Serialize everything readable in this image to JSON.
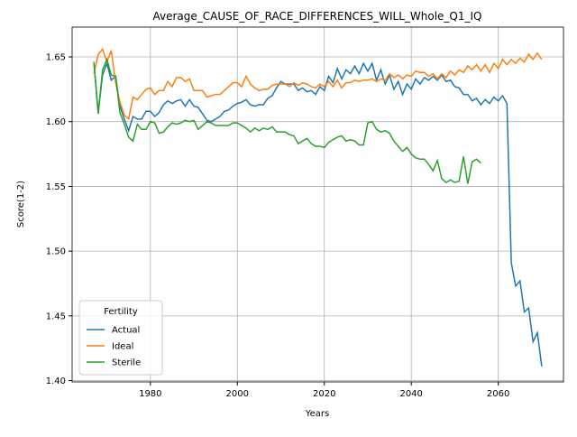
{
  "chart_data": {
    "type": "line",
    "title": "Average_CAUSE_OF_RACE_DIFFERENCES_WILL_Whole_Q1_IQ",
    "x_label": "Years",
    "y_label": "Score(1-2)",
    "legend_title": "Fertility",
    "legend": "lower left",
    "grid": true,
    "xlim": [
      1962,
      2075
    ],
    "xticks": [
      1980,
      2000,
      2020,
      2040,
      2060
    ],
    "ylim": [
      1.399,
      1.673
    ],
    "yticks": [
      {
        "value": 1.4,
        "label": "1.40"
      },
      1.45,
      {
        "value": 1.5,
        "label": "1.50"
      },
      1.55,
      {
        "value": 1.6,
        "label": "1.60"
      },
      1.65
    ],
    "x": [
      1967,
      1968,
      1969,
      1970,
      1971,
      1972,
      1973,
      1974,
      1975,
      1976,
      1977,
      1978,
      1979,
      1980,
      1981,
      1982,
      1983,
      1984,
      1985,
      1986,
      1987,
      1988,
      1989,
      1990,
      1991,
      1992,
      1993,
      1994,
      1995,
      1996,
      1997,
      1998,
      1999,
      2000,
      2001,
      2002,
      2003,
      2004,
      2005,
      2006,
      2007,
      2008,
      2009,
      2010,
      2011,
      2012,
      2013,
      2014,
      2015,
      2016,
      2017,
      2018,
      2019,
      2020,
      2021,
      2022,
      2023,
      2024,
      2025,
      2026,
      2027,
      2028,
      2029,
      2030,
      2031,
      2032,
      2033,
      2034,
      2035,
      2036,
      2037,
      2038,
      2039,
      2040,
      2041,
      2042,
      2043,
      2044,
      2045,
      2046,
      2047,
      2048,
      2049,
      2050,
      2051,
      2052,
      2053,
      2054,
      2055,
      2056,
      2057,
      2058,
      2059,
      2060,
      2061,
      2062,
      2063,
      2064,
      2065,
      2066,
      2067,
      2068,
      2069,
      2070
    ],
    "series": [
      {
        "name": "Actual",
        "color": "#1f77b4",
        "values": [
          1.646,
          1.607,
          1.636,
          1.645,
          1.632,
          1.635,
          1.612,
          1.602,
          1.593,
          1.604,
          1.602,
          1.602,
          1.608,
          1.608,
          1.604,
          1.607,
          1.613,
          1.616,
          1.614,
          1.616,
          1.617,
          1.612,
          1.617,
          1.612,
          1.611,
          1.606,
          1.601,
          1.6,
          1.602,
          1.604,
          1.608,
          1.609,
          1.612,
          1.614,
          1.615,
          1.617,
          1.613,
          1.612,
          1.613,
          1.613,
          1.618,
          1.62,
          1.626,
          1.631,
          1.629,
          1.629,
          1.629,
          1.624,
          1.626,
          1.623,
          1.624,
          1.621,
          1.627,
          1.624,
          1.635,
          1.63,
          1.641,
          1.633,
          1.64,
          1.637,
          1.643,
          1.637,
          1.645,
          1.639,
          1.645,
          1.632,
          1.64,
          1.629,
          1.636,
          1.625,
          1.631,
          1.621,
          1.629,
          1.625,
          1.633,
          1.629,
          1.634,
          1.632,
          1.635,
          1.632,
          1.636,
          1.631,
          1.632,
          1.627,
          1.626,
          1.621,
          1.621,
          1.616,
          1.618,
          1.613,
          1.617,
          1.614,
          1.619,
          1.616,
          1.62,
          1.614,
          1.491,
          1.473,
          1.477,
          1.453,
          1.456,
          1.43,
          1.437,
          1.411
        ]
      },
      {
        "name": "Ideal",
        "color": "#ff7f0e",
        "values": [
          1.637,
          1.652,
          1.656,
          1.646,
          1.655,
          1.63,
          1.615,
          1.605,
          1.602,
          1.619,
          1.617,
          1.621,
          1.625,
          1.626,
          1.621,
          1.624,
          1.624,
          1.631,
          1.627,
          1.634,
          1.634,
          1.631,
          1.633,
          1.624,
          1.624,
          1.624,
          1.619,
          1.62,
          1.621,
          1.621,
          1.624,
          1.627,
          1.63,
          1.63,
          1.627,
          1.635,
          1.629,
          1.626,
          1.624,
          1.625,
          1.625,
          1.628,
          1.629,
          1.629,
          1.629,
          1.627,
          1.63,
          1.628,
          1.63,
          1.629,
          1.627,
          1.626,
          1.629,
          1.627,
          1.631,
          1.627,
          1.632,
          1.626,
          1.63,
          1.63,
          1.632,
          1.631,
          1.632,
          1.632,
          1.633,
          1.631,
          1.633,
          1.632,
          1.637,
          1.634,
          1.636,
          1.633,
          1.636,
          1.635,
          1.639,
          1.638,
          1.638,
          1.635,
          1.637,
          1.633,
          1.637,
          1.634,
          1.639,
          1.636,
          1.64,
          1.638,
          1.643,
          1.64,
          1.644,
          1.639,
          1.644,
          1.638,
          1.645,
          1.641,
          1.648,
          1.644,
          1.648,
          1.645,
          1.649,
          1.646,
          1.652,
          1.648,
          1.653,
          1.648
        ]
      },
      {
        "name": "Sterile",
        "color": "#2ca02c",
        "values": [
          1.646,
          1.606,
          1.64,
          1.648,
          1.636,
          1.635,
          1.607,
          1.598,
          1.588,
          1.585,
          1.598,
          1.594,
          1.594,
          1.6,
          1.599,
          1.591,
          1.592,
          1.596,
          1.599,
          1.598,
          1.599,
          1.601,
          1.6,
          1.601,
          1.594,
          1.597,
          1.6,
          1.599,
          1.597,
          1.597,
          1.597,
          1.597,
          1.599,
          1.599,
          1.597,
          1.595,
          1.592,
          1.595,
          1.593,
          1.595,
          1.594,
          1.596,
          1.592,
          1.592,
          1.592,
          1.59,
          1.589,
          1.583,
          1.585,
          1.587,
          1.583,
          1.581,
          1.581,
          1.58,
          1.584,
          1.586,
          1.588,
          1.589,
          1.585,
          1.586,
          1.585,
          1.582,
          1.582,
          1.599,
          1.6,
          1.594,
          1.592,
          1.593,
          1.591,
          1.585,
          1.581,
          1.577,
          1.58,
          1.575,
          1.572,
          1.571,
          1.571,
          1.567,
          1.562,
          1.57,
          1.556,
          1.553,
          1.555,
          1.553,
          1.554,
          1.573,
          1.552,
          1.569,
          1.571,
          1.568,
          null,
          null,
          null,
          null,
          null,
          null,
          null,
          null,
          null,
          null,
          null,
          null,
          null,
          null
        ]
      }
    ]
  }
}
